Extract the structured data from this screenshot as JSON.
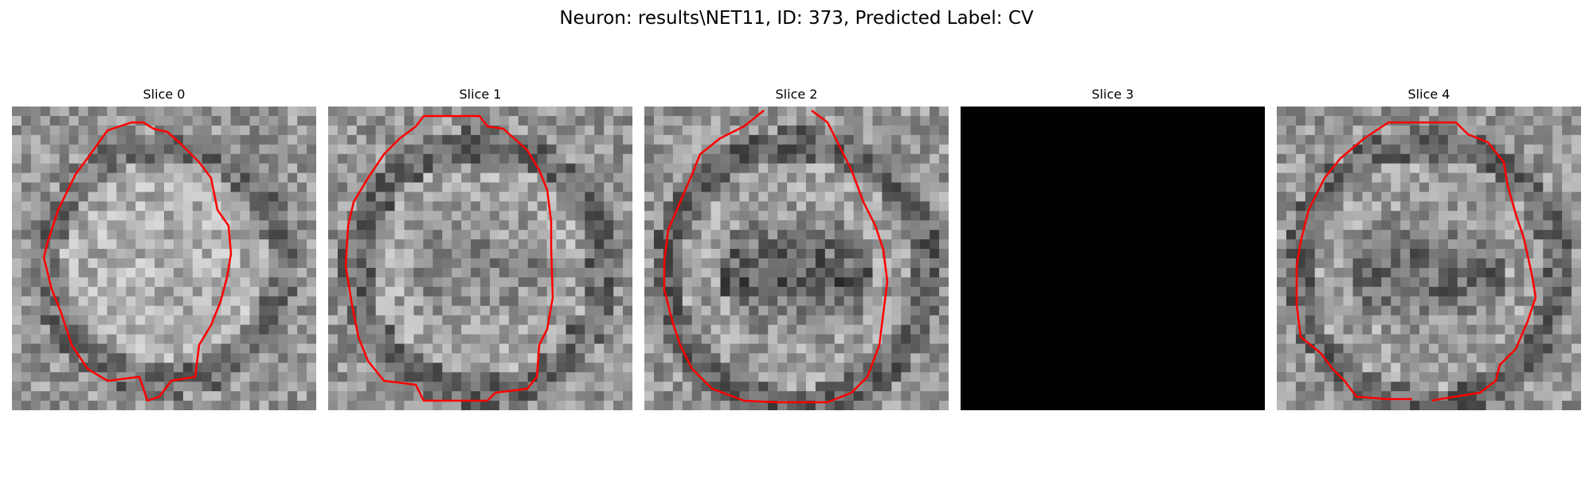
{
  "figure": {
    "title": "Neuron: results\\NET11, ID: 373, Predicted Label: CV"
  },
  "contour_color": "#ff0000",
  "panels": [
    {
      "title": "Slice 0",
      "image": "blurry bright gray round cell with mottled texture",
      "contour": "closed outline around the cell",
      "dark": false
    },
    {
      "title": "Slice 1",
      "image": "round gray cell with slightly darker interior",
      "contour": "closed outline around the cell",
      "dark": false
    },
    {
      "title": "Slice 2",
      "image": "round gray cell with a dark band across the center",
      "contour": "outline open at the top",
      "dark": false
    },
    {
      "title": "Slice 3",
      "image": "all black frame",
      "contour": "none",
      "dark": true
    },
    {
      "title": "Slice 4",
      "image": "round gray cell with dark mottled center",
      "contour": "outline open at the bottom",
      "dark": false
    }
  ]
}
